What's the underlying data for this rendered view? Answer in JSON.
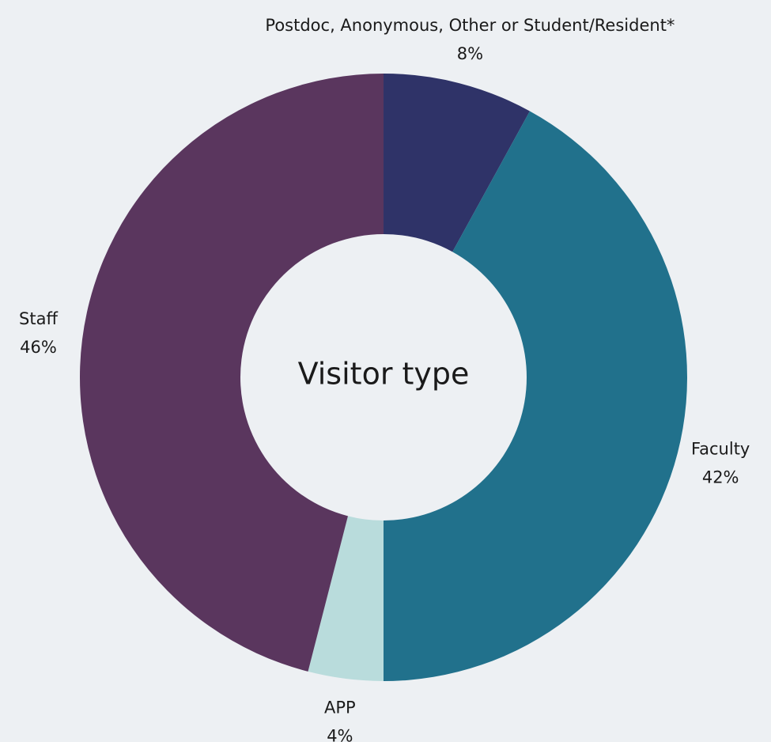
{
  "chart_data": {
    "type": "donut",
    "title": "Visitor type",
    "categories": [
      "Postdoc, Anonymous, Other or Student/Resident*",
      "Faculty",
      "APP",
      "Staff"
    ],
    "values": [
      8,
      42,
      4,
      46
    ],
    "value_labels": [
      "8%",
      "42%",
      "4%",
      "46%"
    ],
    "colors": [
      "#2f3368",
      "#21718c",
      "#b9dcdc",
      "#5a365e"
    ]
  }
}
